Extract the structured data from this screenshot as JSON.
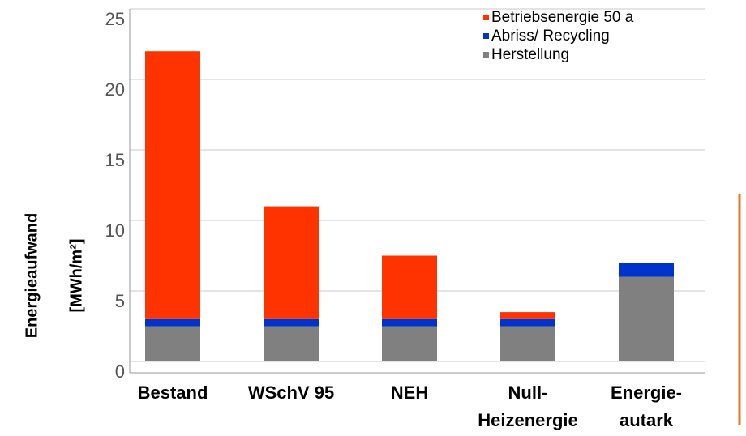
{
  "chart_data": {
    "type": "stacked_bar",
    "ylabel": [
      "Energieaufwand",
      "[MWh/m²]"
    ],
    "categories": [
      "Bestand",
      "WSchV 95",
      "NEH",
      "Null-\nHeizenergie",
      "Energie-\nautark"
    ],
    "series": [
      {
        "name": "Herstellung",
        "color": "#808080",
        "values": [
          2.5,
          2.5,
          2.5,
          2.5,
          6
        ]
      },
      {
        "name": "Abriss/ Recycling",
        "color": "#0033cc",
        "values": [
          0.5,
          0.5,
          0.5,
          0.5,
          1
        ]
      },
      {
        "name": "Betriebsenergie 50 a",
        "color": "#ff3300",
        "values": [
          19,
          8,
          4.5,
          0.5,
          0
        ]
      }
    ],
    "ylim": [
      0,
      25
    ],
    "yticks": [
      0,
      5,
      10,
      15,
      20,
      25
    ],
    "grid": true,
    "legend": "top-right"
  }
}
